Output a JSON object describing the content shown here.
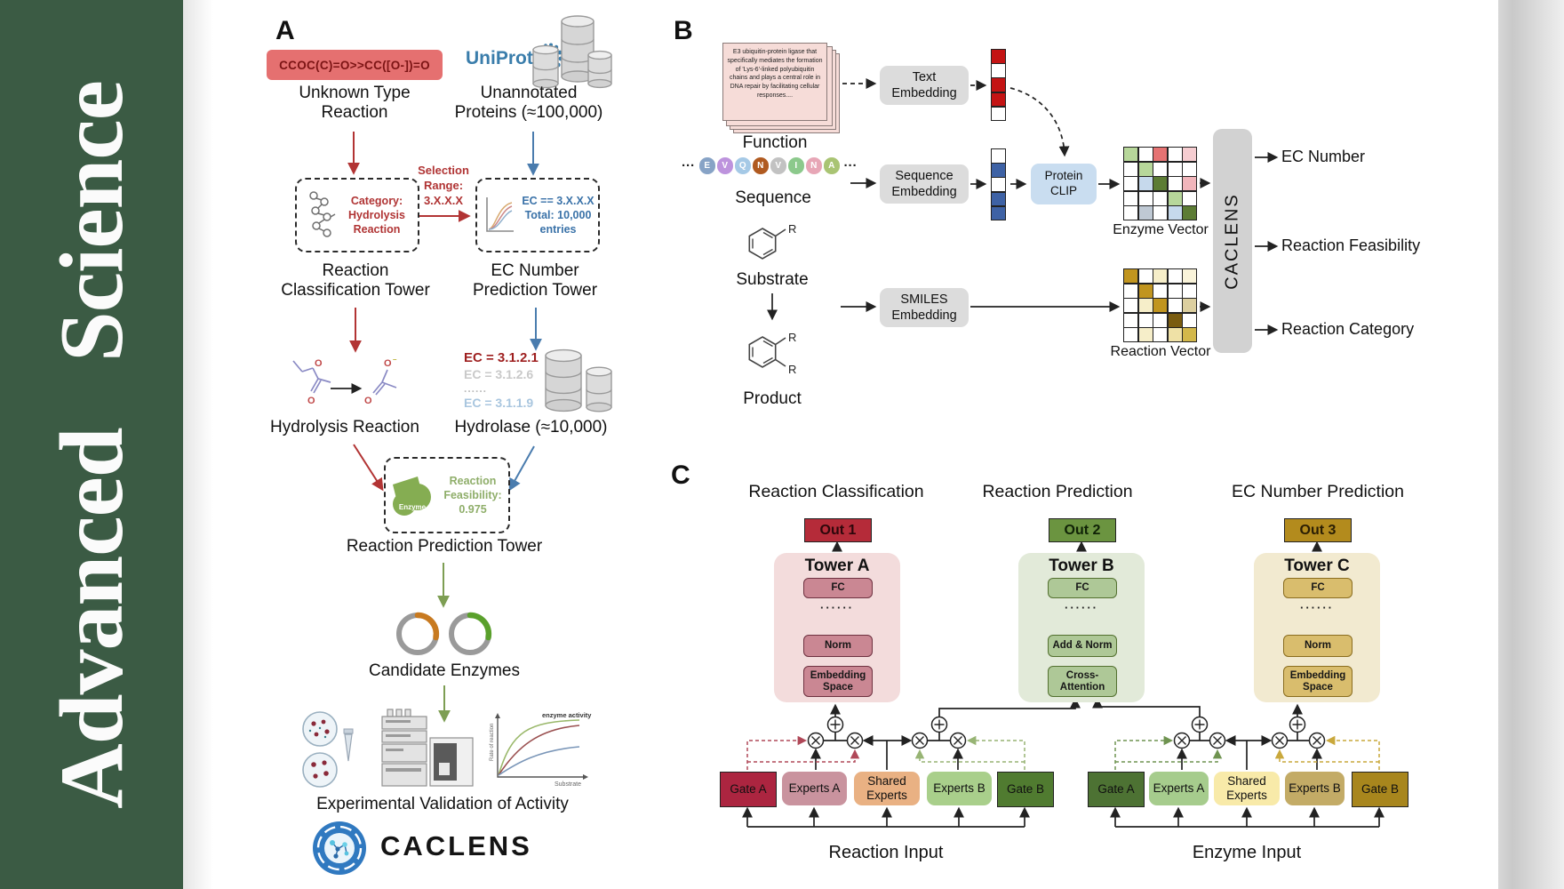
{
  "journal": {
    "brand": "Advanced Science"
  },
  "panelA": {
    "label": "A",
    "smiles": "CCOC(C)=O>>CC([O-])=O",
    "unknown_lines": [
      "Unknown Type",
      "Reaction"
    ],
    "uniprot": "UniProt",
    "unannotated_lines": [
      "Unannotated",
      "Proteins (≈100,000)"
    ],
    "selection_lines": [
      "Selection",
      "Range:",
      "3.X.X.X"
    ],
    "category_lines": [
      "Category:",
      "Hydrolysis",
      "Reaction"
    ],
    "classification_tower_lines": [
      "Reaction",
      "Classification Tower"
    ],
    "ec_filter_lines": [
      "EC == 3.X.X.X",
      "Total: 10,000",
      "entries"
    ],
    "ec_tower_lines": [
      "EC Number",
      "Prediction Tower"
    ],
    "hydrolysis_label": "Hydrolysis Reaction",
    "ec_candidates": [
      {
        "text": "EC = 3.1.2.1",
        "color": "#9e1f1f"
      },
      {
        "text": "EC = 3.1.2.6",
        "color": "#c9c9c9"
      },
      {
        "text": "......",
        "color": "#bdbdbd"
      },
      {
        "text": "EC = 3.1.1.9",
        "color": "#a9c6df"
      }
    ],
    "hydrolase_label": "Hydrolase (≈10,000)",
    "enzyme_badge": "Enzyme",
    "feasibility_lines": [
      "Reaction",
      "Feasibility:",
      "0.975"
    ],
    "prediction_tower_label": "Reaction Prediction Tower",
    "candidate_label": "Candidate Enzymes",
    "validation_label": "Experimental Validation of Activity",
    "kinetics": {
      "curve_label": "enzyme activity",
      "ylabel": "Rate of reaction",
      "xlabel": "Substrate"
    },
    "brand": "CACLENS"
  },
  "panelB": {
    "label": "B",
    "function_card": "E3 ubiquitin-protein ligase that specifically mediates the formation of 'Lys-6'-linked polyubiquitin chains and plays a central role in DNA repair by facilitating cellular responses....",
    "function_label": "Function",
    "ellipsis": "···",
    "sequence_beads": [
      {
        "letter": "E",
        "color": "#87a3c6"
      },
      {
        "letter": "V",
        "color": "#bd93dd"
      },
      {
        "letter": "Q",
        "color": "#a5c9e6"
      },
      {
        "letter": "N",
        "color": "#b05a20"
      },
      {
        "letter": "V",
        "color": "#c2c2c2"
      },
      {
        "letter": "I",
        "color": "#8cc98c"
      },
      {
        "letter": "N",
        "color": "#e7a6b6"
      },
      {
        "letter": "A",
        "color": "#a9c473"
      }
    ],
    "sequence_label": "Sequence",
    "substrate_label": "Substrate",
    "product_label": "Product",
    "r_label": "R",
    "text_embedding_lines": [
      "Text",
      "Embedding"
    ],
    "sequence_embedding_lines": [
      "Sequence",
      "Embedding"
    ],
    "smiles_embedding_lines": [
      "SMILES",
      "Embedding"
    ],
    "protein_clip_lines": [
      "Protein",
      "CLIP"
    ],
    "text_vector": [
      "#c41414",
      "#ffffff",
      "#c41414",
      "#c41414",
      "#ffffff"
    ],
    "sequence_vector": [
      "#ffffff",
      "#3e62a5",
      "#ffffff",
      "#3e62a5",
      "#3e62a5"
    ],
    "enzyme_matrix": [
      [
        "#b7d79a",
        "#ffffff",
        "#e57373",
        "#ffffff",
        "#f6cdd1"
      ],
      [
        "#ffffff",
        "#b7d79a",
        "#ffffff",
        "#ffffff",
        "#ffffff"
      ],
      [
        "#ffffff",
        "#c6d9ec",
        "#5c7c34",
        "#ffffff",
        "#f1b5bb"
      ],
      [
        "#ffffff",
        "#ffffff",
        "#ffffff",
        "#b7d79a",
        "#ffffff"
      ],
      [
        "#ffffff",
        "#bfc9d4",
        "#ffffff",
        "#c6d9ec",
        "#5c7c34"
      ]
    ],
    "reaction_matrix": [
      [
        "#c1951f",
        "#ffffff",
        "#f6eec9",
        "#ffffff",
        "#faf4da"
      ],
      [
        "#ffffff",
        "#c1951f",
        "#ffffff",
        "#ffffff",
        "#ffffff"
      ],
      [
        "#ffffff",
        "#f6eec9",
        "#c1951f",
        "#ffffff",
        "#dccf9f"
      ],
      [
        "#ffffff",
        "#ffffff",
        "#ffffff",
        "#7a5c10",
        "#ffffff"
      ],
      [
        "#ffffff",
        "#f6eec9",
        "#ffffff",
        "#efe1a6",
        "#d3b84a"
      ]
    ],
    "enzyme_vector_label": "Enzyme Vector",
    "reaction_vector_label": "Reaction Vector",
    "caclens": "CACLENS",
    "outputs": [
      "EC Number",
      "Reaction Feasibility",
      "Reaction Category"
    ]
  },
  "panelC": {
    "label": "C",
    "titles": [
      "Reaction Classification",
      "Reaction Prediction",
      "EC Number Prediction"
    ],
    "outs": [
      "Out 1",
      "Out 2",
      "Out 3"
    ],
    "towers": [
      {
        "title": "Tower A",
        "fc": "FC",
        "dots": "······",
        "mid": "Norm",
        "bottom_lines": [
          "Embedding",
          "Space"
        ]
      },
      {
        "title": "Tower B",
        "fc": "FC",
        "dots": "······",
        "mid": "Add & Norm",
        "bottom_lines": [
          "Cross-",
          "Attention"
        ]
      },
      {
        "title": "Tower C",
        "fc": "FC",
        "dots": "······",
        "mid": "Norm",
        "bottom_lines": [
          "Embedding",
          "Space"
        ]
      }
    ],
    "moe": [
      {
        "gate_a": "Gate A",
        "experts_a": "Experts A",
        "shared_lines": [
          "Shared",
          "Experts"
        ],
        "experts_b": "Experts B",
        "gate_b": "Gate B",
        "input": "Reaction Input"
      },
      {
        "gate_a": "Gate A",
        "experts_a": "Experts A",
        "shared_lines": [
          "Shared",
          "Experts"
        ],
        "experts_b": "Experts B",
        "gate_b": "Gate B",
        "input": "Enzyme Input"
      }
    ]
  }
}
